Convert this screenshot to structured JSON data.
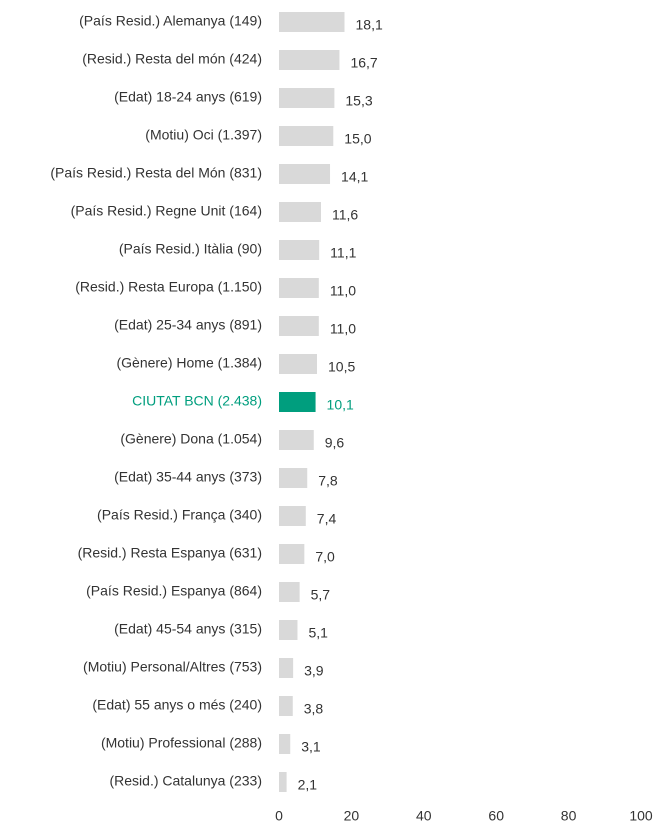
{
  "chart_data": {
    "type": "barh",
    "categories": [
      "(País Resid.) Alemanya (149)",
      "(Resid.) Resta del món (424)",
      "(Edat) 18-24 anys (619)",
      "(Motiu) Oci (1.397)",
      "(País Resid.) Resta del Món (831)",
      "(País Resid.) Regne Unit (164)",
      "(País Resid.) Itàlia (90)",
      "(Resid.) Resta Europa (1.150)",
      "(Edat) 25-34 anys (891)",
      "(Gènere) Home (1.384)",
      "CIUTAT BCN (2.438)",
      "(Gènere) Dona (1.054)",
      "(Edat) 35-44 anys (373)",
      "(País Resid.) França (340)",
      "(Resid.) Resta Espanya (631)",
      "(País Resid.) Espanya (864)",
      "(Edat) 45-54 anys (315)",
      "(Motiu) Personal/Altres (753)",
      "(Edat) 55 anys o més (240)",
      "(Motiu) Professional (288)",
      "(Resid.) Catalunya (233)"
    ],
    "values": [
      18.1,
      16.7,
      15.3,
      15.0,
      14.1,
      11.6,
      11.1,
      11.0,
      11.0,
      10.5,
      10.1,
      9.6,
      7.8,
      7.4,
      7.0,
      5.7,
      5.1,
      3.9,
      3.8,
      3.1,
      2.1
    ],
    "value_labels": [
      "18,1",
      "16,7",
      "15,3",
      "15,0",
      "14,1",
      "11,6",
      "11,1",
      "11,0",
      "11,0",
      "10,5",
      "10,1",
      "9,6",
      "7,8",
      "7,4",
      "7,0",
      "5,7",
      "5,1",
      "3,9",
      "3,8",
      "3,1",
      "2,1"
    ],
    "colors": [
      "#d9d9d9",
      "#d9d9d9",
      "#d9d9d9",
      "#d9d9d9",
      "#d9d9d9",
      "#d9d9d9",
      "#d9d9d9",
      "#d9d9d9",
      "#d9d9d9",
      "#d9d9d9",
      "#009e7e",
      "#d9d9d9",
      "#d9d9d9",
      "#d9d9d9",
      "#d9d9d9",
      "#d9d9d9",
      "#d9d9d9",
      "#d9d9d9",
      "#d9d9d9",
      "#d9d9d9",
      "#d9d9d9"
    ],
    "text_colors": [
      "#333333",
      "#333333",
      "#333333",
      "#333333",
      "#333333",
      "#333333",
      "#333333",
      "#333333",
      "#333333",
      "#333333",
      "#009e7e",
      "#333333",
      "#333333",
      "#333333",
      "#333333",
      "#333333",
      "#333333",
      "#333333",
      "#333333",
      "#333333",
      "#333333"
    ],
    "xlim": [
      0,
      100
    ],
    "xticks": [
      0,
      20,
      40,
      60,
      80,
      100
    ]
  }
}
